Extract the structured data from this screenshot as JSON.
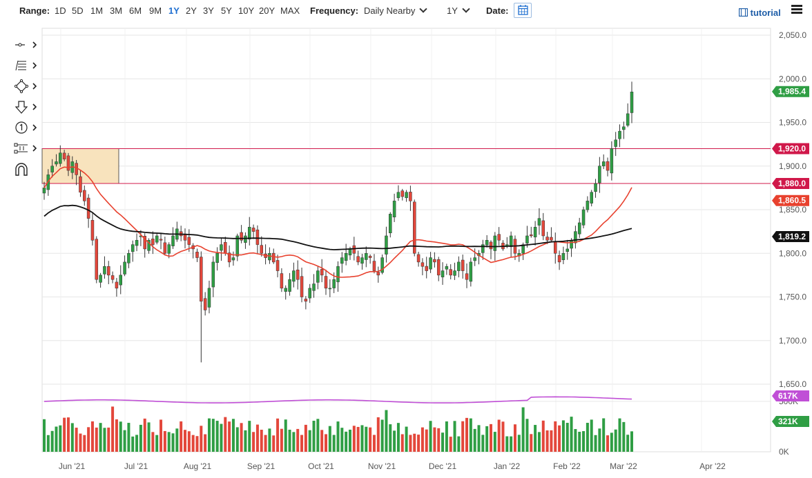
{
  "toolbar": {
    "range_label": "Range:",
    "ranges": [
      "1D",
      "5D",
      "1M",
      "3M",
      "6M",
      "9M",
      "1Y",
      "2Y",
      "3Y",
      "5Y",
      "10Y",
      "20Y",
      "MAX"
    ],
    "active_range": "1Y",
    "frequency_label": "Frequency:",
    "frequency_value": "Daily Nearby",
    "period_value": "1Y",
    "date_label": "Date:",
    "tutorial_label": "tutorial"
  },
  "drawing_tools": [
    "line-tool-icon",
    "fib-tool-icon",
    "shape-tool-icon",
    "arrow-tool-icon",
    "annotation-tool-icon",
    "measure-tool-icon",
    "magnet-icon"
  ],
  "colors": {
    "up": "#2f9e44",
    "down": "#e3473b",
    "ma_red": "#e8412e",
    "ma_black": "#111111",
    "volume_ma": "#c04fd6",
    "hline": "#d0184a",
    "box_fill": "#f8e3bd",
    "grid": "#e6e6e6"
  },
  "chart_data": {
    "type": "candlestick",
    "x_labels": [
      "Jun '21",
      "Jul '21",
      "Aug '21",
      "Sep '21",
      "Oct '21",
      "Nov '21",
      "Dec '21",
      "Jan '22",
      "Feb '22",
      "Mar '22",
      "Apr '22"
    ],
    "y_ticks": [
      "2,050.0",
      "2,000.0",
      "1,950.0",
      "1,900.0",
      "1,850.0",
      "1,800.0",
      "1,750.0",
      "1,700.0",
      "1,650.0"
    ],
    "ylim": [
      1650,
      2050
    ],
    "volume_ticks": [
      "500K",
      "0K"
    ],
    "horizontal_lines": [
      1920.0,
      1880.0
    ],
    "badges": [
      {
        "label": "1,985.4",
        "value": 1985.4,
        "color": "#2f9e44"
      },
      {
        "label": "1,920.0",
        "value": 1920.0,
        "color": "#d0184a"
      },
      {
        "label": "1,880.0",
        "value": 1880.0,
        "color": "#d0184a"
      },
      {
        "label": "1,860.5",
        "value": 1860.5,
        "color": "#e8412e"
      },
      {
        "label": "1,819.2",
        "value": 1819.2,
        "color": "#111111"
      }
    ],
    "volume_badges": [
      {
        "label": "617K",
        "value": 617,
        "color": "#c04fd6"
      },
      {
        "label": "321K",
        "value": 321,
        "color": "#2f9e44"
      }
    ],
    "series_close_path": [
      1875,
      1890,
      1900,
      1905,
      1915,
      1908,
      1895,
      1905,
      1890,
      1870,
      1860,
      1840,
      1815,
      1770,
      1775,
      1785,
      1775,
      1770,
      1760,
      1775,
      1790,
      1800,
      1810,
      1815,
      1820,
      1805,
      1815,
      1810,
      1820,
      1815,
      1800,
      1810,
      1820,
      1828,
      1820,
      1815,
      1810,
      1805,
      1795,
      1745,
      1735,
      1760,
      1790,
      1800,
      1810,
      1800,
      1790,
      1795,
      1820,
      1815,
      1820,
      1830,
      1825,
      1810,
      1800,
      1795,
      1800,
      1790,
      1780,
      1760,
      1760,
      1770,
      1780,
      1770,
      1750,
      1745,
      1760,
      1765,
      1780,
      1775,
      1760,
      1760,
      1770,
      1785,
      1795,
      1800,
      1805,
      1800,
      1790,
      1795,
      1800,
      1795,
      1780,
      1775,
      1795,
      1820,
      1845,
      1860,
      1870,
      1865,
      1870,
      1860,
      1800,
      1790,
      1785,
      1780,
      1795,
      1790,
      1775,
      1780,
      1785,
      1775,
      1780,
      1790,
      1780,
      1770,
      1790,
      1795,
      1800,
      1810,
      1815,
      1805,
      1820,
      1815,
      1805,
      1810,
      1820,
      1800,
      1800,
      1810,
      1820,
      1820,
      1830,
      1840,
      1820,
      1815,
      1815,
      1800,
      1790,
      1800,
      1805,
      1815,
      1825,
      1835,
      1850,
      1860,
      1870,
      1880,
      1900,
      1905,
      1895,
      1920,
      1930,
      1940,
      1945,
      1960,
      1985
    ],
    "volume_ma_value": 617,
    "last_volume": 321
  }
}
